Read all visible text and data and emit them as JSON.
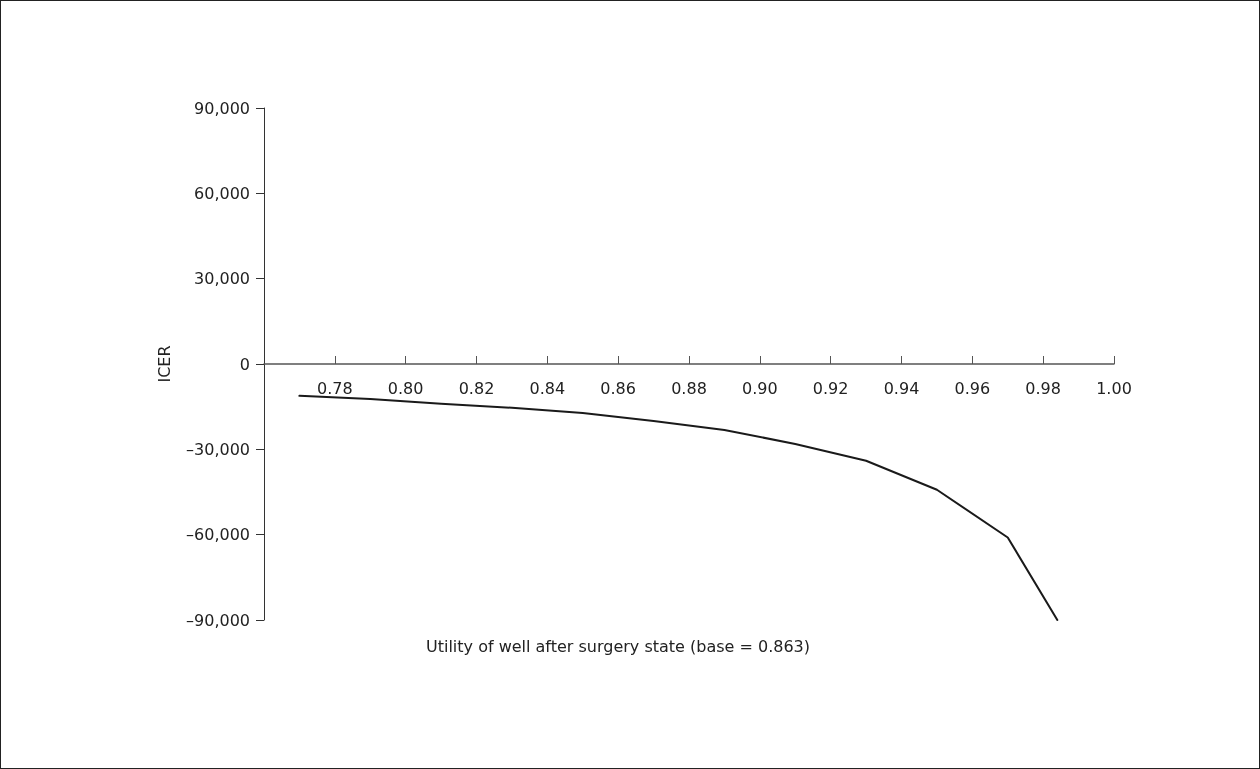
{
  "chart_data": {
    "type": "line",
    "xlabel": "Utility of well after surgery state (base = 0.863)",
    "ylabel": "ICER",
    "x": [
      0.77,
      0.79,
      0.81,
      0.83,
      0.85,
      0.87,
      0.89,
      0.91,
      0.93,
      0.95,
      0.97,
      0.984
    ],
    "series": [
      {
        "color": "#1a1a1a",
        "values": [
          -11200,
          -12300,
          -14000,
          -15400,
          -17200,
          -20000,
          -23200,
          -28100,
          -34000,
          -44200,
          -61000,
          -90000
        ]
      }
    ],
    "xlim": [
      0.76,
      1.0
    ],
    "xticks": [
      {
        "value": 0.78,
        "label": "0.78"
      },
      {
        "value": 0.8,
        "label": "0.80"
      },
      {
        "value": 0.82,
        "label": "0.82"
      },
      {
        "value": 0.84,
        "label": "0.84"
      },
      {
        "value": 0.86,
        "label": "0.86"
      },
      {
        "value": 0.88,
        "label": "0.88"
      },
      {
        "value": 0.9,
        "label": "0.90"
      },
      {
        "value": 0.92,
        "label": "0.92"
      },
      {
        "value": 0.94,
        "label": "0.94"
      },
      {
        "value": 0.96,
        "label": "0.96"
      },
      {
        "value": 0.98,
        "label": "0.98"
      },
      {
        "value": 1.0,
        "label": "1.00"
      }
    ],
    "ylim": [
      -90000,
      90000
    ],
    "yticks": [
      {
        "value": -90000,
        "label": "–90,000"
      },
      {
        "value": -60000,
        "label": "–60,000"
      },
      {
        "value": -30000,
        "label": "–30,000"
      },
      0,
      {
        "value": 30000,
        "label": "30,000"
      },
      {
        "value": 60000,
        "label": "60,000"
      },
      {
        "value": 90000,
        "label": "90,000"
      }
    ],
    "grid": false,
    "marker": "none",
    "line_style": "solid"
  }
}
